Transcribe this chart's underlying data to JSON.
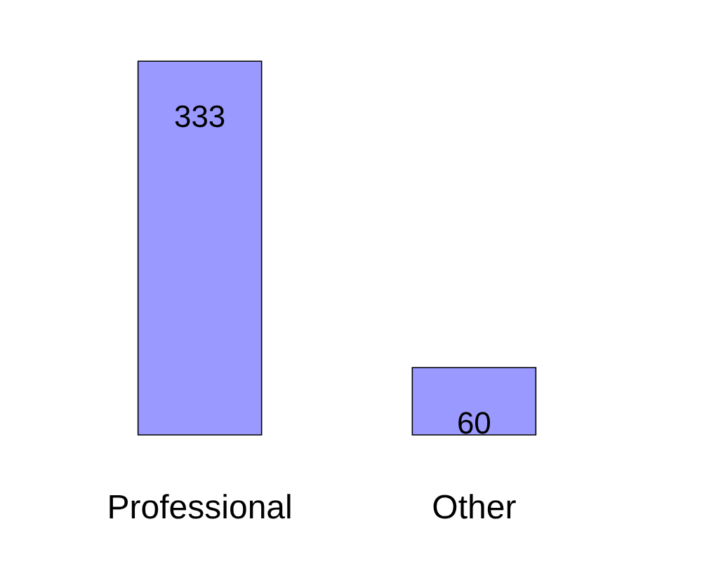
{
  "chart_data": {
    "type": "bar",
    "categories": [
      "Professional",
      "Other"
    ],
    "values": [
      333,
      60
    ],
    "color": "#9999ff",
    "data_labels": true
  }
}
